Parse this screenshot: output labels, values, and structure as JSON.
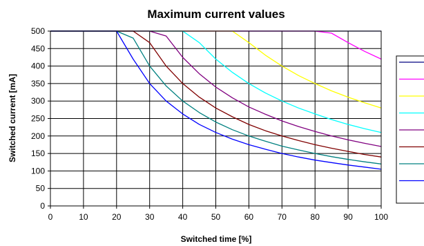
{
  "chart_data": {
    "type": "line",
    "title": "Maximum current values",
    "xlabel": "Switched time [%]",
    "ylabel": "Switched current [mA]",
    "xlim": [
      0,
      100
    ],
    "ylim": [
      0,
      500
    ],
    "x_ticks": [
      0,
      10,
      20,
      30,
      40,
      50,
      60,
      70,
      80,
      90,
      100
    ],
    "y_ticks": [
      0,
      50,
      100,
      150,
      200,
      250,
      300,
      350,
      400,
      450,
      500
    ],
    "grid": true,
    "legend_position": "right",
    "x": [
      0,
      5,
      10,
      15,
      20,
      25,
      30,
      35,
      40,
      45,
      50,
      55,
      60,
      65,
      70,
      75,
      80,
      85,
      90,
      95,
      100
    ],
    "series": [
      {
        "color": "#000080",
        "values": [
          500,
          500,
          500,
          500,
          500,
          500,
          500,
          500,
          500,
          500,
          500,
          500,
          500,
          500,
          500,
          500,
          500,
          500,
          500,
          500,
          500
        ]
      },
      {
        "color": "#FF00FF",
        "values": [
          500,
          500,
          500,
          500,
          500,
          500,
          500,
          500,
          500,
          500,
          500,
          500,
          500,
          500,
          500,
          500,
          500,
          494,
          467,
          442,
          420
        ]
      },
      {
        "color": "#FFFF00",
        "values": [
          500,
          500,
          500,
          500,
          500,
          500,
          500,
          500,
          500,
          500,
          500,
          500,
          467,
          431,
          400,
          373,
          350,
          329,
          311,
          295,
          280
        ]
      },
      {
        "color": "#00FFFF",
        "values": [
          500,
          500,
          500,
          500,
          500,
          500,
          500,
          500,
          500,
          467,
          420,
          382,
          350,
          323,
          300,
          280,
          263,
          247,
          233,
          221,
          210
        ]
      },
      {
        "color": "#800080",
        "values": [
          500,
          500,
          500,
          500,
          500,
          500,
          500,
          486,
          425,
          378,
          340,
          309,
          283,
          262,
          243,
          227,
          213,
          200,
          189,
          179,
          170
        ]
      },
      {
        "color": "#800000",
        "values": [
          500,
          500,
          500,
          500,
          500,
          500,
          467,
          400,
          350,
          311,
          280,
          255,
          233,
          215,
          200,
          187,
          175,
          165,
          156,
          147,
          140
        ]
      },
      {
        "color": "#008080",
        "values": [
          500,
          500,
          500,
          500,
          500,
          480,
          400,
          343,
          300,
          267,
          240,
          218,
          200,
          185,
          171,
          160,
          150,
          141,
          133,
          126,
          120
        ]
      },
      {
        "color": "#0000FF",
        "values": [
          500,
          500,
          500,
          500,
          500,
          420,
          350,
          300,
          263,
          233,
          210,
          191,
          175,
          162,
          150,
          140,
          131,
          124,
          117,
          111,
          105
        ]
      }
    ]
  }
}
